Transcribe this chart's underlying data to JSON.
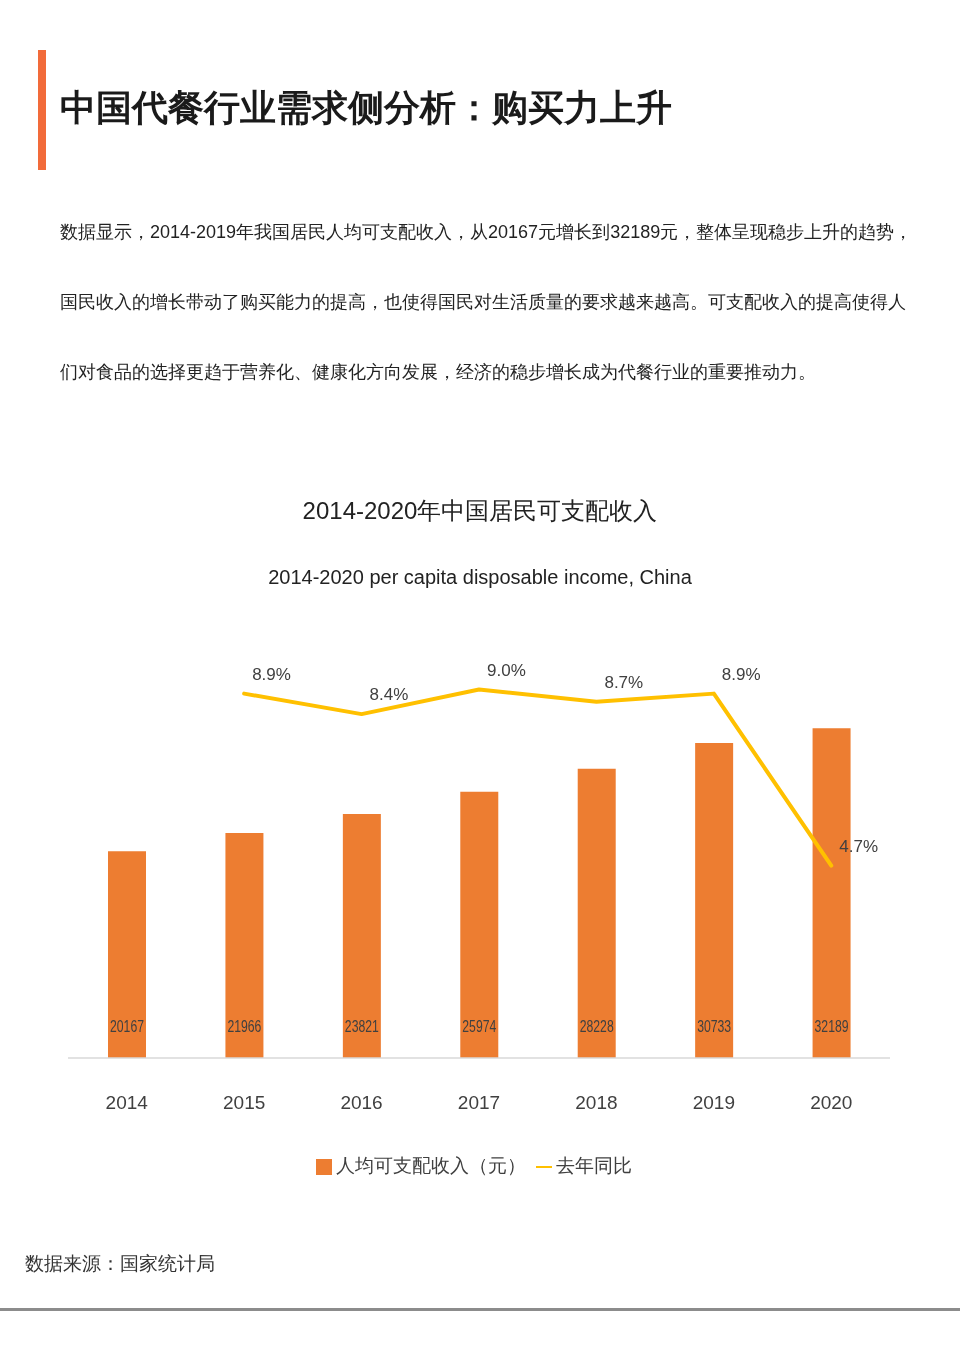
{
  "chart_data": {
    "type": "bar",
    "title": "2014-2020年中国居民可支配收入",
    "subtitle": "2014-2020 per capita disposable income, China",
    "annotations": [
      "中国代餐行业需求侧分析：购买力上升",
      "数据显示，2014-2019年我国居民人均可支配收入，从20167元增长到32189元，整体呈现稳步上升的趋势，国民收入的增长带动了购买能力的提高，也使得国民对生活质量的要求越来越高。可支配收入的提高使得人们对食品的选择更趋于营养化、健康化方向发展，经济的稳步增长成为代餐行业的重要推动力。",
      "数据来源：国家统计局"
    ],
    "categories": [
      "2014",
      "2015",
      "2016",
      "2017",
      "2018",
      "2019",
      "2020"
    ],
    "series": [
      {
        "name": "人均可支配收入（元）",
        "color": "#ed7d31",
        "values": [
          20167,
          21966,
          23821,
          25974,
          28228,
          30733,
          32189
        ],
        "value_labels": [
          "20167",
          "21966",
          "23821",
          "25974",
          "28228",
          "30733",
          "32189"
        ]
      },
      {
        "name": "去年同比",
        "type": "line",
        "axis": "y2",
        "color": "#ffc000",
        "values": [
          null,
          8.9,
          8.4,
          9.0,
          8.7,
          8.9,
          4.7
        ],
        "value_labels": [
          null,
          "8.9%",
          "8.4%",
          "9.0%",
          "8.7%",
          "8.9%",
          "4.7%"
        ]
      }
    ],
    "tick_labels": "x",
    "legend": "bottom",
    "marker": "none"
  }
}
